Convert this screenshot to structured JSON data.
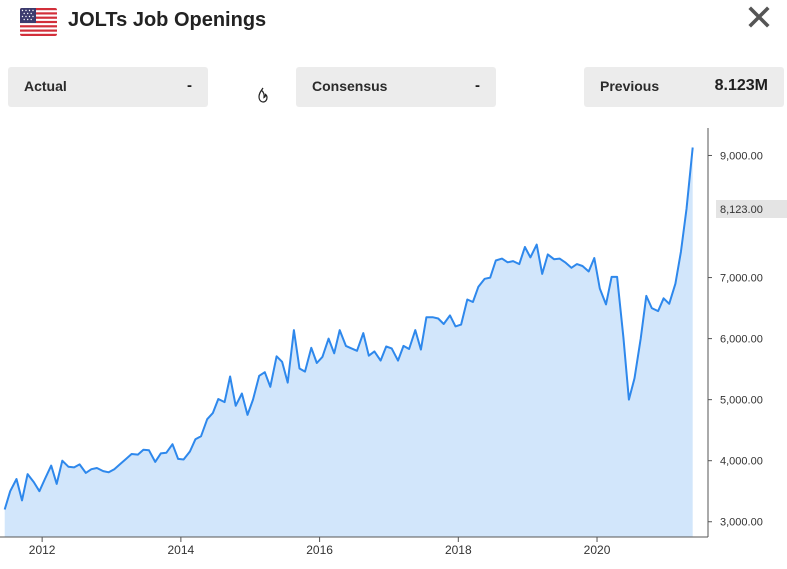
{
  "header": {
    "title": "JOLTs Job Openings",
    "flag_icon": "us-flag-icon",
    "close_icon": "close-icon"
  },
  "stats": {
    "actual": {
      "label": "Actual",
      "value": "-"
    },
    "consensus": {
      "label": "Consensus",
      "value": "-"
    },
    "previous": {
      "label": "Previous",
      "value": "8.123M"
    }
  },
  "colors": {
    "line": "#2e88ec",
    "area": "#d2e6fb",
    "marker_bg": "#e4e4e4"
  },
  "chart_data": {
    "type": "area",
    "title": "",
    "xlabel": "",
    "ylabel": "",
    "x_ticks": [
      "2012",
      "2014",
      "2016",
      "2018",
      "2020"
    ],
    "x_tick_years": [
      2012,
      2014,
      2016,
      2018,
      2020
    ],
    "y_ticks": [
      "3,000.00",
      "4,000.00",
      "5,000.00",
      "6,000.00",
      "7,000.00",
      "9,000.00"
    ],
    "y_tick_values": [
      3000,
      4000,
      5000,
      6000,
      7000,
      9000
    ],
    "ylim": [
      2750,
      9450
    ],
    "xlim": [
      2011.45,
      2021.6
    ],
    "grid": false,
    "last_value_label": "8,123.00",
    "last_value": 8123,
    "series": [
      {
        "x": [
          2011.46,
          2011.54,
          2011.63,
          2011.71,
          2011.79,
          2011.88,
          2011.96,
          2012.04,
          2012.13,
          2012.21,
          2012.29,
          2012.38,
          2012.46,
          2012.54,
          2012.63,
          2012.71,
          2012.79,
          2012.88,
          2012.96,
          2013.04,
          2013.13,
          2013.21,
          2013.29,
          2013.38,
          2013.46,
          2013.54,
          2013.63,
          2013.71,
          2013.79,
          2013.88,
          2013.96,
          2014.04,
          2014.13,
          2014.21,
          2014.29,
          2014.38,
          2014.46,
          2014.54,
          2014.63,
          2014.71,
          2014.79,
          2014.88,
          2014.96,
          2015.04,
          2015.13,
          2015.21,
          2015.29,
          2015.38,
          2015.46,
          2015.54,
          2015.63,
          2015.71,
          2015.79,
          2015.88,
          2015.96,
          2016.04,
          2016.13,
          2016.21,
          2016.29,
          2016.38,
          2016.46,
          2016.54,
          2016.63,
          2016.71,
          2016.79,
          2016.88,
          2016.96,
          2017.04,
          2017.13,
          2017.21,
          2017.29,
          2017.38,
          2017.46,
          2017.54,
          2017.63,
          2017.71,
          2017.79,
          2017.88,
          2017.96,
          2018.04,
          2018.13,
          2018.21,
          2018.29,
          2018.38,
          2018.46,
          2018.54,
          2018.63,
          2018.71,
          2018.79,
          2018.88,
          2018.96,
          2019.04,
          2019.13,
          2019.21,
          2019.29,
          2019.38,
          2019.46,
          2019.54,
          2019.63,
          2019.71,
          2019.79,
          2019.88,
          2019.96,
          2020.04,
          2020.13,
          2020.21,
          2020.29,
          2020.38,
          2020.46,
          2020.54,
          2020.63,
          2020.71,
          2020.79,
          2020.88,
          2020.96,
          2021.04,
          2021.13,
          2021.21,
          2021.29,
          2021.38
        ],
        "values": [
          3200,
          3500,
          3700,
          3350,
          3780,
          3650,
          3500,
          3700,
          3920,
          3620,
          4000,
          3900,
          3890,
          3940,
          3800,
          3860,
          3880,
          3830,
          3810,
          3860,
          3950,
          4030,
          4110,
          4100,
          4180,
          4170,
          3980,
          4120,
          4130,
          4270,
          4030,
          4020,
          4150,
          4350,
          4400,
          4680,
          4780,
          5010,
          4960,
          5380,
          4900,
          5100,
          4750,
          5000,
          5390,
          5450,
          5210,
          5710,
          5620,
          5280,
          6140,
          5510,
          5460,
          5850,
          5600,
          5700,
          6000,
          5760,
          6140,
          5880,
          5840,
          5800,
          6090,
          5720,
          5790,
          5640,
          5870,
          5840,
          5640,
          5880,
          5830,
          6140,
          5820,
          6350,
          6350,
          6330,
          6240,
          6380,
          6200,
          6230,
          6640,
          6600,
          6850,
          6980,
          7000,
          7280,
          7310,
          7250,
          7270,
          7220,
          7500,
          7330,
          7540,
          7060,
          7380,
          7300,
          7310,
          7250,
          7160,
          7220,
          7190,
          7100,
          7320,
          6820,
          6560,
          7010,
          7010,
          6020,
          5000,
          5350,
          6000,
          6700,
          6500,
          6450,
          6660,
          6570,
          6900,
          7420,
          8123,
          9130
        ]
      }
    ]
  }
}
